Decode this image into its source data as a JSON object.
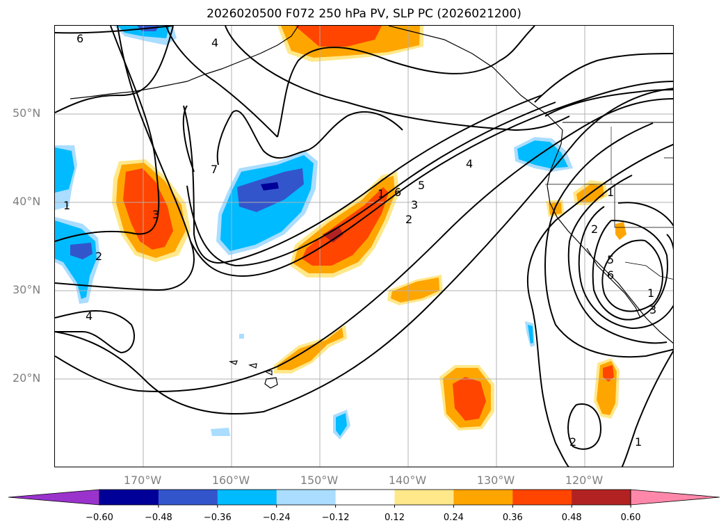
{
  "title": "2026020500 F072 250 hPa PV, SLP PC (2026021200)",
  "lat_labels": [
    "50°N",
    "40°N",
    "30°N",
    "20°N"
  ],
  "lon_labels": [
    "170°W",
    "160°W",
    "150°W",
    "140°W",
    "130°W",
    "120°W"
  ],
  "colorbar": {
    "ticks": [
      "−0.60",
      "−0.48",
      "−0.36",
      "−0.24",
      "−0.12",
      "0.12",
      "0.24",
      "0.36",
      "0.48",
      "0.60"
    ],
    "colors": [
      "#9933cc",
      "#000099",
      "#3355cc",
      "#00bbff",
      "#aaddff",
      "#ffffff",
      "#ffe88a",
      "#ffa500",
      "#ff4500",
      "#b22222",
      "#ff88aa"
    ]
  },
  "contour_labels": [
    "6",
    "4",
    "1",
    "3",
    "2",
    "4",
    "7",
    "1",
    "6",
    "5",
    "3",
    "2",
    "4",
    "1",
    "2",
    "5",
    "6",
    "1",
    "3",
    "2",
    "1"
  ]
}
